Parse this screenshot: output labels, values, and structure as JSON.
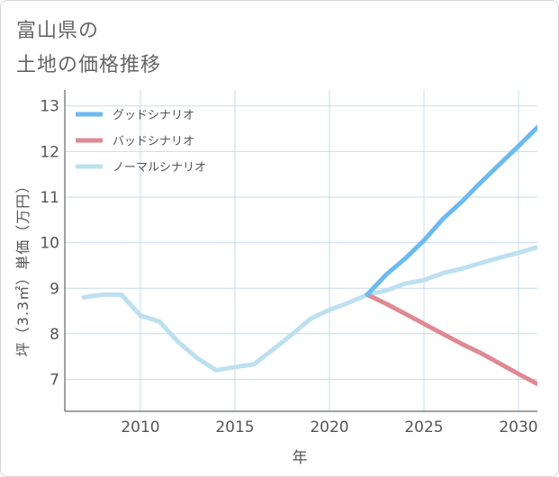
{
  "title_lines": [
    "富山県の",
    "土地の価格推移"
  ],
  "chart_data": {
    "type": "line",
    "xlabel": "年",
    "ylabel": "坪（3.3㎡）単価（万円）",
    "xlim": [
      2006,
      2031
    ],
    "ylim": [
      6.3,
      13.35
    ],
    "x_ticks": [
      2010,
      2015,
      2020,
      2025,
      2030
    ],
    "y_ticks": [
      7,
      8,
      9,
      10,
      11,
      12,
      13
    ],
    "grid": true,
    "legend_position": "top-left",
    "history": {
      "x": [
        2007,
        2008,
        2009,
        2010,
        2011,
        2012,
        2013,
        2014,
        2015,
        2016,
        2017,
        2018,
        2019,
        2020,
        2021,
        2022
      ],
      "values": [
        8.8,
        8.86,
        8.86,
        8.4,
        8.27,
        7.82,
        7.47,
        7.2,
        7.27,
        7.33,
        7.65,
        7.98,
        8.33,
        8.53,
        8.68,
        8.86
      ],
      "color": "#bde0ef"
    },
    "series": [
      {
        "name": "グッドシナリオ",
        "color": "#6cbaf0",
        "x": [
          2022,
          2023,
          2024,
          2025,
          2026,
          2027,
          2028,
          2029,
          2030,
          2031
        ],
        "values": [
          8.86,
          9.3,
          9.65,
          10.05,
          10.52,
          10.9,
          11.32,
          11.72,
          12.12,
          12.53
        ]
      },
      {
        "name": "バッドシナリオ",
        "color": "#dd8a92",
        "x": [
          2022,
          2023,
          2024,
          2025,
          2026,
          2027,
          2028,
          2029,
          2030,
          2031
        ],
        "values": [
          8.86,
          8.66,
          8.44,
          8.22,
          8.0,
          7.78,
          7.58,
          7.35,
          7.12,
          6.9
        ]
      },
      {
        "name": "ノーマルシナリオ",
        "color": "#bde0ef",
        "x": [
          2022,
          2023,
          2024,
          2025,
          2026,
          2027,
          2028,
          2029,
          2030,
          2031
        ],
        "values": [
          8.86,
          8.95,
          9.1,
          9.18,
          9.33,
          9.43,
          9.55,
          9.67,
          9.78,
          9.9
        ]
      }
    ]
  }
}
